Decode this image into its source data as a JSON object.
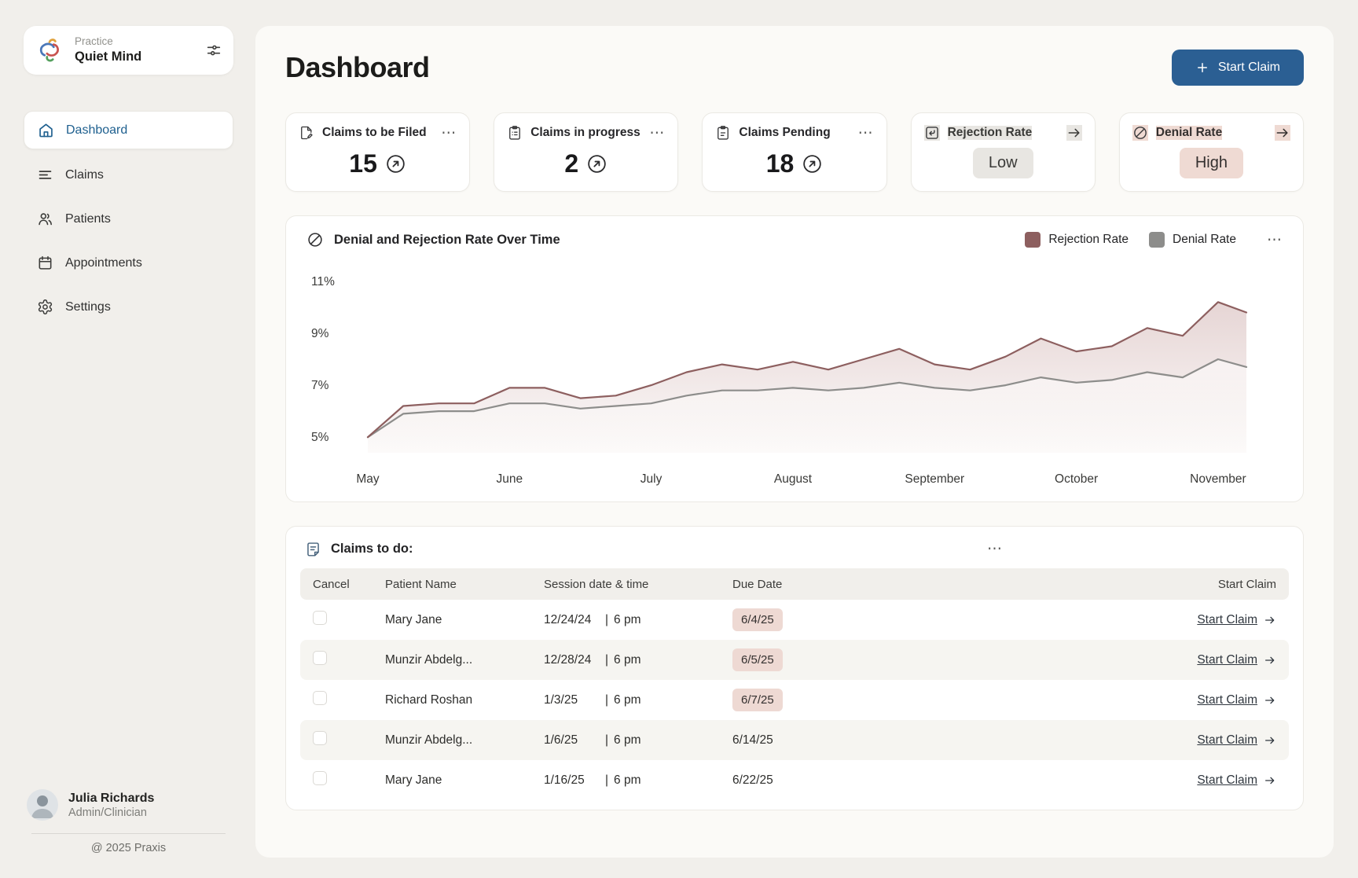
{
  "ui": {
    "more": "⋯"
  },
  "sidebar": {
    "practice": {
      "label": "Practice",
      "name": "Quiet Mind"
    },
    "items": [
      {
        "label": "Dashboard"
      },
      {
        "label": "Claims"
      },
      {
        "label": "Patients"
      },
      {
        "label": "Appointments"
      },
      {
        "label": "Settings"
      }
    ],
    "user": {
      "name": "Julia Richards",
      "role": "Admin/Clinician"
    },
    "copyright": "@ 2025 Praxis"
  },
  "header": {
    "title": "Dashboard",
    "start_claim_label": "Start Claim"
  },
  "stats": [
    {
      "label": "Claims to be Filed",
      "value": "15"
    },
    {
      "label": "Claims in progress",
      "value": "2"
    },
    {
      "label": "Claims Pending",
      "value": "18"
    },
    {
      "label": "Rejection Rate",
      "value": "Low",
      "badge_bg": "#e8e6e2"
    },
    {
      "label": "Denial Rate",
      "value": "High",
      "badge_bg": "#efdad3"
    }
  ],
  "chart_card": {
    "title": "Denial and Rejection Rate Over Time",
    "legend": [
      {
        "label": "Rejection Rate",
        "color": "#8d5f5f"
      },
      {
        "label": "Denial Rate",
        "color": "#8d8d8b"
      }
    ]
  },
  "chart_data": {
    "type": "area",
    "title": "Denial and Rejection Rate Over Time",
    "month_labels": [
      "May",
      "June",
      "July",
      "August",
      "September",
      "October",
      "November"
    ],
    "month_positions": [
      0,
      1,
      2,
      3,
      4,
      5,
      6
    ],
    "x": [
      0,
      0.25,
      0.5,
      0.75,
      1,
      1.25,
      1.5,
      1.75,
      2,
      2.25,
      2.5,
      2.75,
      3,
      3.25,
      3.5,
      3.75,
      4,
      4.25,
      4.5,
      4.75,
      5,
      5.25,
      5.5,
      5.75,
      6,
      6.2
    ],
    "series": [
      {
        "name": "Rejection Rate",
        "color": "#8d5f5f",
        "values": [
          5.0,
          6.2,
          6.3,
          6.3,
          6.9,
          6.9,
          6.5,
          6.6,
          7.0,
          7.5,
          7.8,
          7.6,
          7.9,
          7.6,
          8.0,
          8.4,
          7.8,
          7.6,
          8.1,
          8.8,
          8.3,
          8.5,
          9.2,
          8.9,
          10.2,
          9.8
        ]
      },
      {
        "name": "Denial Rate",
        "color": "#8d8d8b",
        "values": [
          5.0,
          5.9,
          6.0,
          6.0,
          6.3,
          6.3,
          6.1,
          6.2,
          6.3,
          6.6,
          6.8,
          6.8,
          6.9,
          6.8,
          6.9,
          7.1,
          6.9,
          6.8,
          7.0,
          7.3,
          7.1,
          7.2,
          7.5,
          7.3,
          8.0,
          7.7
        ]
      }
    ],
    "yticks": [
      5,
      7,
      9,
      11
    ],
    "ytick_suffix": "%",
    "ylim": [
      4.4,
      11.6
    ],
    "grid": false,
    "legend_position": "top-right"
  },
  "claims_table": {
    "title": "Claims to do:",
    "columns": [
      "Cancel",
      "Patient Name",
      "Session date & time",
      "Due Date",
      "Start Claim"
    ],
    "separator": "|",
    "rows": [
      {
        "patient": "Mary Jane",
        "session_date": "12/24/24",
        "session_time": "6 pm",
        "due_date": "6/4/25",
        "due_highlight": true,
        "action": "Start Claim"
      },
      {
        "patient": "Munzir Abdelg...",
        "session_date": "12/28/24",
        "session_time": "6 pm",
        "due_date": "6/5/25",
        "due_highlight": true,
        "action": "Start Claim"
      },
      {
        "patient": "Richard Roshan",
        "session_date": "1/3/25",
        "session_time": "6 pm",
        "due_date": "6/7/25",
        "due_highlight": true,
        "action": "Start Claim"
      },
      {
        "patient": "Munzir Abdelg...",
        "session_date": "1/6/25",
        "session_time": "6 pm",
        "due_date": "6/14/25",
        "due_highlight": false,
        "action": "Start Claim"
      },
      {
        "patient": "Mary Jane",
        "session_date": "1/16/25",
        "session_time": "6 pm",
        "due_date": "6/22/25",
        "due_highlight": false,
        "action": "Start Claim"
      }
    ]
  }
}
